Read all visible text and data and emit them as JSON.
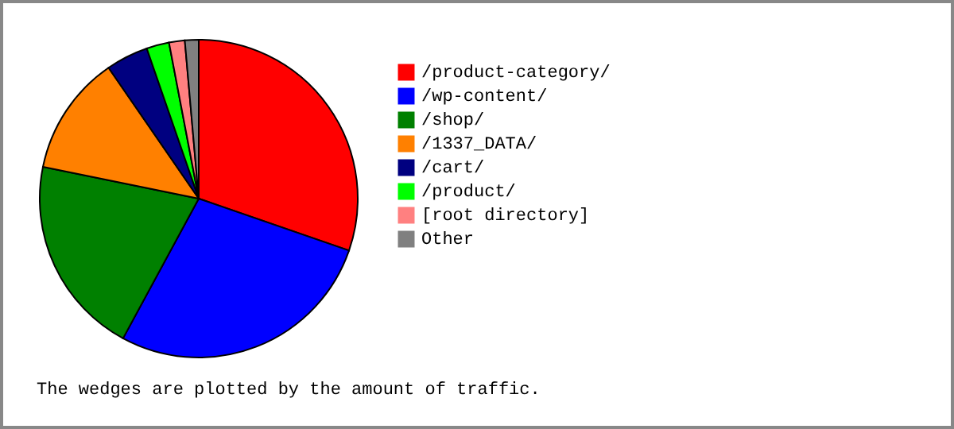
{
  "chart_data": {
    "type": "pie",
    "categories": [
      "/product-category/",
      "/wp-content/",
      "/shop/",
      "/1337_DATA/",
      "/cart/",
      "/product/",
      "[root directory]",
      "Other"
    ],
    "values": [
      30.3,
      27.6,
      20.3,
      12.2,
      4.3,
      2.3,
      1.6,
      1.4
    ],
    "colors": [
      "#ff0000",
      "#0000ff",
      "#008000",
      "#ff8000",
      "#000080",
      "#00ff00",
      "#ff8080",
      "#808080"
    ],
    "legend": "right",
    "annotations": [
      "The wedges are plotted by the amount of traffic."
    ]
  }
}
